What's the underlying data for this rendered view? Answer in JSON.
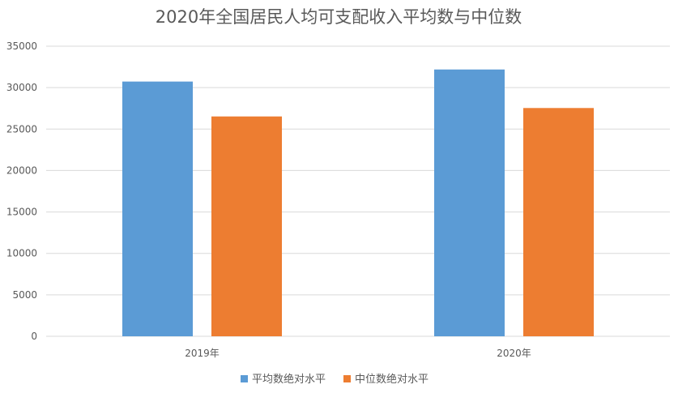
{
  "chart_data": {
    "type": "bar",
    "title": "2020年全国居民人均可支配收入平均数与中位数",
    "categories": [
      "2019年",
      "2020年"
    ],
    "series": [
      {
        "name": "平均数绝对水平",
        "values": [
          30733,
          32189
        ],
        "color": "#5b9bd5"
      },
      {
        "name": "中位数绝对水平",
        "values": [
          26523,
          27540
        ],
        "color": "#ed7d31"
      }
    ],
    "ylim": [
      0,
      35000
    ],
    "yticks": [
      0,
      5000,
      10000,
      15000,
      20000,
      25000,
      30000,
      35000
    ],
    "grid": true,
    "legend_position": "bottom"
  }
}
